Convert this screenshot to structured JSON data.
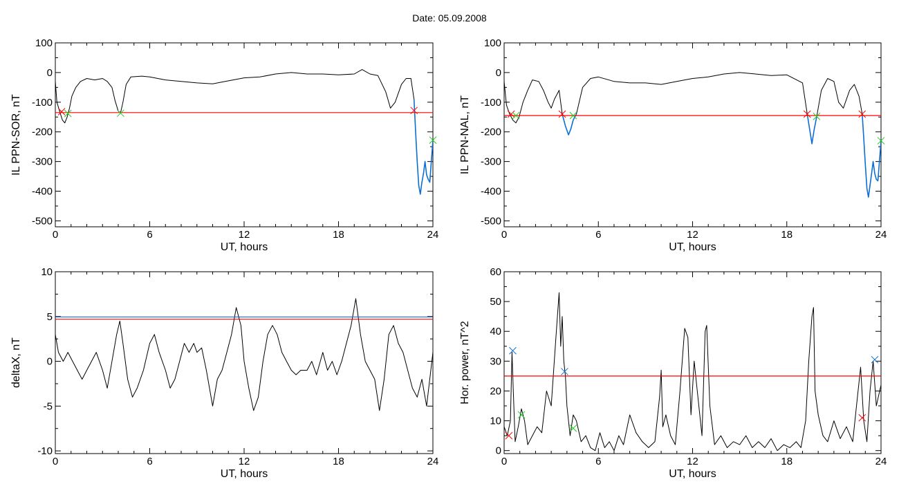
{
  "page": {
    "title": "Date:  05.09.2008"
  },
  "colors": {
    "red": "#ff0000",
    "blue": "#0a6ed6",
    "green": "#22cc22",
    "black": "#000000",
    "lightblue": "#2aa0ff"
  },
  "chart_data": [
    {
      "type": "line",
      "xlabel": "UT, hours",
      "ylabel": "IL PPN-SOR, nT",
      "xlim": [
        0,
        24
      ],
      "ylim": [
        -520,
        100
      ],
      "xticks": [
        0,
        6,
        12,
        18,
        24
      ],
      "yticks": [
        100,
        0,
        -100,
        -200,
        -300,
        -400,
        -500
      ],
      "grid": false,
      "series": [
        {
          "color": "black",
          "x": [
            0,
            0.1,
            0.3,
            0.45,
            0.6,
            0.75,
            0.9,
            1.05,
            1.3,
            1.6,
            2.0,
            2.5,
            3.0,
            3.3,
            3.6,
            3.8,
            4.0,
            4.15,
            4.3,
            4.5,
            4.8,
            5.5,
            6,
            7,
            8,
            9,
            10,
            11,
            12,
            13,
            14,
            15,
            16,
            17,
            18,
            19,
            19.5,
            20,
            20.5,
            21,
            21.3,
            21.6,
            22,
            22.3,
            22.6,
            22.8
          ],
          "y": [
            -30,
            -100,
            -135,
            -160,
            -170,
            -150,
            -120,
            -80,
            -50,
            -30,
            -20,
            -25,
            -20,
            -30,
            -50,
            -95,
            -130,
            -135,
            -100,
            -40,
            -15,
            -12,
            -15,
            -25,
            -30,
            -35,
            -38,
            -28,
            -18,
            -15,
            -5,
            0,
            -5,
            -5,
            -8,
            -5,
            10,
            -5,
            -10,
            -65,
            -120,
            -100,
            -40,
            -20,
            -20,
            -90
          ]
        },
        {
          "color": "blue",
          "x": [
            22.8,
            22.9,
            23.0,
            23.1,
            23.2,
            23.3,
            23.4,
            23.5,
            23.6,
            23.7,
            23.8,
            23.9,
            24
          ],
          "y": [
            -90,
            -200,
            -300,
            -380,
            -410,
            -370,
            -340,
            -300,
            -345,
            -360,
            -370,
            -300,
            -230
          ]
        }
      ],
      "hlines": [
        {
          "y": -135,
          "color": "red"
        }
      ],
      "markers": [
        {
          "x": 0.4,
          "y": -132,
          "color": "red"
        },
        {
          "x": 0.8,
          "y": -138,
          "color": "green"
        },
        {
          "x": 4.15,
          "y": -137,
          "color": "green"
        },
        {
          "x": 22.8,
          "y": -128,
          "color": "red"
        },
        {
          "x": 24,
          "y": -228,
          "color": "green"
        }
      ]
    },
    {
      "type": "line",
      "xlabel": "UT, hours",
      "ylabel": "IL PPN-NAL, nT",
      "xlim": [
        0,
        24
      ],
      "ylim": [
        -520,
        100
      ],
      "xticks": [
        0,
        6,
        12,
        18,
        24
      ],
      "yticks": [
        100,
        0,
        -100,
        -200,
        -300,
        -400,
        -500
      ],
      "grid": false,
      "series": [
        {
          "color": "black",
          "x": [
            0,
            0.15,
            0.35,
            0.55,
            0.75,
            0.95,
            1.2,
            1.5,
            1.8,
            2.2,
            2.5,
            2.8,
            3.0,
            3.2,
            3.5,
            3.7
          ],
          "y": [
            -30,
            -110,
            -140,
            -160,
            -170,
            -150,
            -100,
            -60,
            -25,
            -30,
            -60,
            -100,
            -120,
            -90,
            -60,
            -140
          ]
        },
        {
          "color": "blue",
          "x": [
            3.7,
            3.9,
            4.1,
            4.25,
            4.4,
            4.6
          ],
          "y": [
            -140,
            -180,
            -210,
            -190,
            -160,
            -140
          ]
        },
        {
          "color": "black",
          "x": [
            4.6,
            5.0,
            5.5,
            6,
            7,
            8,
            9,
            10,
            11,
            12,
            13,
            14,
            15,
            16,
            17,
            18,
            19.0,
            19.3
          ],
          "y": [
            -140,
            -50,
            -20,
            -15,
            -30,
            -35,
            -35,
            -40,
            -30,
            -20,
            -15,
            -5,
            0,
            -5,
            -10,
            -8,
            -35,
            -140
          ]
        },
        {
          "color": "blue",
          "x": [
            19.3,
            19.45,
            19.6,
            19.75,
            19.9
          ],
          "y": [
            -140,
            -190,
            -240,
            -190,
            -150
          ]
        },
        {
          "color": "black",
          "x": [
            19.9,
            20.2,
            20.6,
            21.0,
            21.3,
            21.6,
            22.0,
            22.3,
            22.6,
            22.8
          ],
          "y": [
            -150,
            -60,
            -20,
            -30,
            -100,
            -120,
            -60,
            -40,
            -80,
            -140
          ]
        },
        {
          "color": "blue",
          "x": [
            22.8,
            22.9,
            23.0,
            23.1,
            23.2,
            23.3,
            23.4,
            23.5,
            23.6,
            23.7,
            23.8,
            23.9,
            24
          ],
          "y": [
            -140,
            -220,
            -310,
            -390,
            -420,
            -380,
            -340,
            -300,
            -340,
            -360,
            -365,
            -300,
            -230
          ]
        }
      ],
      "hlines": [
        {
          "y": -145,
          "color": "red"
        }
      ],
      "markers": [
        {
          "x": 0.45,
          "y": -140,
          "color": "red"
        },
        {
          "x": 0.75,
          "y": -145,
          "color": "green"
        },
        {
          "x": 3.7,
          "y": -140,
          "color": "red"
        },
        {
          "x": 4.4,
          "y": -145,
          "color": "green"
        },
        {
          "x": 19.3,
          "y": -140,
          "color": "red"
        },
        {
          "x": 19.9,
          "y": -148,
          "color": "green"
        },
        {
          "x": 22.8,
          "y": -140,
          "color": "red"
        },
        {
          "x": 24,
          "y": -230,
          "color": "green"
        }
      ]
    },
    {
      "type": "line",
      "xlabel": "UT, hours",
      "ylabel": "deltaX, nT",
      "xlim": [
        0,
        24
      ],
      "ylim": [
        -10.3,
        10
      ],
      "xticks": [
        0,
        6,
        12,
        18,
        24
      ],
      "yticks": [
        10,
        5,
        0,
        -5,
        -10
      ],
      "grid": false,
      "series": [
        {
          "color": "black",
          "x": [
            0,
            0.2,
            0.5,
            0.8,
            1.1,
            1.4,
            1.7,
            2.0,
            2.3,
            2.6,
            3.0,
            3.3,
            3.6,
            3.9,
            4.1,
            4.3,
            4.6,
            4.9,
            5.2,
            5.6,
            6.0,
            6.3,
            6.6,
            7.0,
            7.3,
            7.6,
            7.9,
            8.2,
            8.5,
            8.8,
            9.0,
            9.3,
            9.6,
            10.0,
            10.3,
            10.6,
            10.9,
            11.2,
            11.5,
            11.8,
            12.0,
            12.3,
            12.6,
            12.9,
            13.2,
            13.5,
            13.8,
            14.1,
            14.4,
            14.7,
            15.0,
            15.3,
            15.6,
            16.0,
            16.3,
            16.6,
            17.0,
            17.3,
            17.6,
            17.9,
            18.2,
            18.5,
            18.8,
            19.1,
            19.4,
            19.7,
            20.0,
            20.3,
            20.6,
            20.9,
            21.2,
            21.5,
            21.8,
            22.1,
            22.4,
            22.7,
            23.0,
            23.3,
            23.6,
            24
          ],
          "y": [
            3,
            1,
            0,
            1,
            0,
            -1,
            -2,
            -1,
            0,
            1,
            -1,
            -3,
            0,
            3,
            4.5,
            2,
            -2,
            -4,
            -3,
            -1,
            2,
            3,
            1,
            -1,
            -3,
            -2,
            0,
            2,
            1,
            2,
            1,
            1.5,
            -1,
            -5,
            -2,
            -1,
            1,
            3,
            6,
            4,
            0,
            -3,
            -5.5,
            -4,
            0,
            3,
            4,
            3,
            1,
            0,
            -1,
            -1.5,
            -1,
            -1,
            0,
            -1.5,
            1,
            -1,
            0,
            -1.5,
            0,
            2,
            4,
            7,
            3,
            0,
            -1,
            -2,
            -5.5,
            -2,
            3,
            4,
            2,
            1,
            -1,
            -3,
            -4,
            -2,
            -5,
            1
          ]
        }
      ],
      "hlines": [
        {
          "y": 4.95,
          "color": "blue"
        },
        {
          "y": 4.7,
          "color": "red"
        }
      ],
      "markers": []
    },
    {
      "type": "line",
      "xlabel": "UT, hours",
      "ylabel": "Hor. power, nT^2",
      "xlim": [
        0,
        24
      ],
      "ylim": [
        -1,
        60
      ],
      "xticks": [
        0,
        6,
        12,
        18,
        24
      ],
      "yticks": [
        60,
        50,
        40,
        30,
        20,
        10,
        0
      ],
      "grid": false,
      "series": [
        {
          "color": "black",
          "x": [
            0,
            0.2,
            0.4,
            0.5,
            0.55,
            0.7,
            0.9,
            1.1,
            1.3,
            1.5,
            1.8,
            2.1,
            2.4,
            2.7,
            3.0,
            3.3,
            3.5,
            3.6,
            3.7,
            3.8,
            3.9,
            4.0,
            4.2,
            4.4,
            4.6,
            4.9,
            5.2,
            5.5,
            5.8,
            6.1,
            6.4,
            6.7,
            7.0,
            7.3,
            7.6,
            8.0,
            8.4,
            8.8,
            9.2,
            9.6,
            9.9,
            10.0,
            10.1,
            10.3,
            10.6,
            10.9,
            11.2,
            11.5,
            11.7,
            11.9,
            12.1,
            12.3,
            12.6,
            12.8,
            12.9,
            13.1,
            13.4,
            13.8,
            14.2,
            14.6,
            15.0,
            15.4,
            15.8,
            16.2,
            16.6,
            17.0,
            17.4,
            17.8,
            18.2,
            18.6,
            18.9,
            19.2,
            19.4,
            19.6,
            19.7,
            19.8,
            20.0,
            20.3,
            20.6,
            21.0,
            21.4,
            21.8,
            22.2,
            22.5,
            22.7,
            22.9,
            23.1,
            23.3,
            23.5,
            23.7,
            24
          ],
          "y": [
            8,
            5,
            10,
            33,
            25,
            3,
            8,
            14,
            10,
            2,
            5,
            8,
            6,
            20,
            15,
            38,
            53,
            35,
            45,
            30,
            25,
            15,
            5,
            12,
            10,
            3,
            5,
            1,
            0,
            6,
            1,
            3,
            0,
            5,
            2,
            12,
            6,
            3,
            1,
            3,
            18,
            27,
            8,
            12,
            5,
            2,
            20,
            41,
            38,
            12,
            30,
            20,
            5,
            40,
            42,
            15,
            2,
            5,
            1,
            3,
            2,
            5,
            1,
            3,
            1,
            4,
            0,
            2,
            1,
            3,
            1,
            10,
            30,
            45,
            48,
            20,
            12,
            5,
            3,
            10,
            4,
            8,
            3,
            18,
            28,
            10,
            3,
            20,
            30,
            15,
            22
          ]
        }
      ],
      "hlines": [
        {
          "y": 25,
          "color": "red"
        }
      ],
      "markers": [
        {
          "x": 0.55,
          "y": 33.5,
          "color": "blue"
        },
        {
          "x": 0.3,
          "y": 5,
          "color": "red"
        },
        {
          "x": 1.1,
          "y": 12,
          "color": "green"
        },
        {
          "x": 3.85,
          "y": 26.5,
          "color": "blue"
        },
        {
          "x": 4.4,
          "y": 7.5,
          "color": "green"
        },
        {
          "x": 22.8,
          "y": 11,
          "color": "red"
        },
        {
          "x": 23.6,
          "y": 30.5,
          "color": "blue"
        }
      ]
    }
  ]
}
